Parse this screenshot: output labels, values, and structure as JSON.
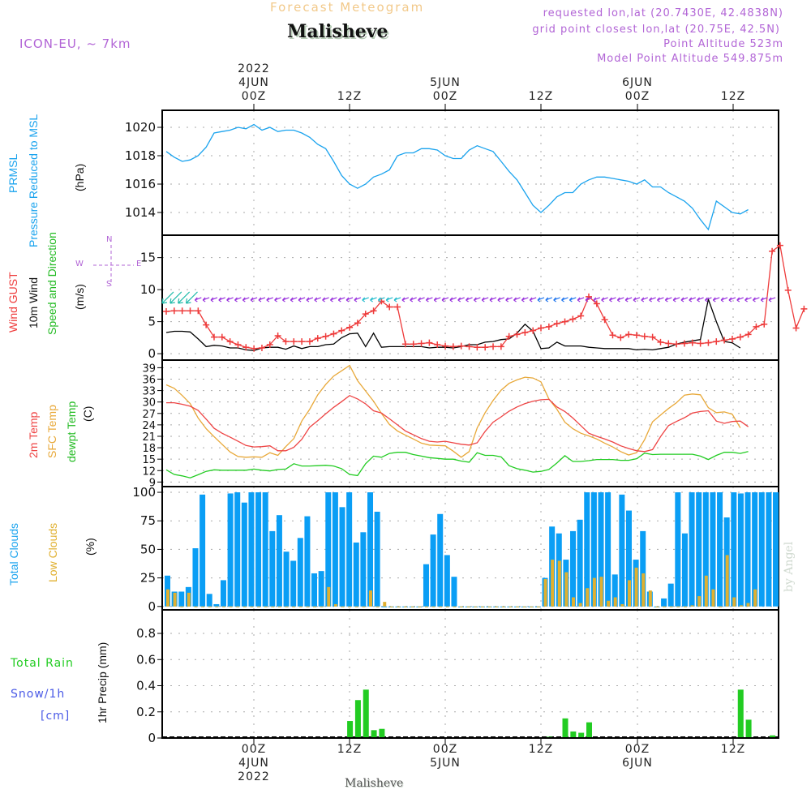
{
  "header": {
    "title": "Forecast Meteogram",
    "location": "Malisheve",
    "model": "ICON-EU, ~ 7km",
    "requested": "requested lon,lat (20.7430E, 42.4838N)",
    "grid_point": "grid point closest lon,lat (20.75E, 42.5N)",
    "point_altitude": "Point Altitude 523m",
    "model_altitude": "Model Point Altitude 549.875m"
  },
  "time_axis": {
    "top_ticks": [
      {
        "l1": "2022",
        "l2": "4JUN",
        "l3": "00Z"
      },
      {
        "l1": "",
        "l2": "",
        "l3": "12Z"
      },
      {
        "l1": "",
        "l2": "5JUN",
        "l3": "00Z"
      },
      {
        "l1": "",
        "l2": "",
        "l3": "12Z"
      },
      {
        "l1": "",
        "l2": "6JUN",
        "l3": "00Z"
      },
      {
        "l1": "",
        "l2": "",
        "l3": "12Z"
      }
    ],
    "bottom_ticks": [
      {
        "l1": "00Z",
        "l2": "4JUN",
        "l3": "2022"
      },
      {
        "l1": "12Z",
        "l2": "",
        "l3": ""
      },
      {
        "l1": "00Z",
        "l2": "5JUN",
        "l3": ""
      },
      {
        "l1": "12Z",
        "l2": "",
        "l3": ""
      },
      {
        "l1": "00Z",
        "l2": "6JUN",
        "l3": ""
      },
      {
        "l1": "12Z",
        "l2": "",
        "l3": ""
      }
    ],
    "start": "2022-06-03 13Z",
    "step_hours": 1
  },
  "labels": {
    "pressure": {
      "l1": "PRMSL",
      "l2": "Pressure Reduced to MSL",
      "unit": "(hPa)"
    },
    "wind": {
      "gust": "Wind GUST",
      "wind10": "10m Wind",
      "dir": "Speed and Direction",
      "unit": "(m/s)",
      "compass": {
        "n": "N",
        "s": "S",
        "e": "E",
        "w": "W"
      }
    },
    "temp": {
      "t2m": "2m Temp",
      "sfc": "SFC Temp",
      "dew": "dewpt Temp",
      "unit": "(C)"
    },
    "clouds": {
      "total": "Total Clouds",
      "low": "Low Clouds",
      "unit": "(%)"
    },
    "precip": {
      "rain": "Total  Rain",
      "snow": "Snow/1h",
      "cm": "[cm]",
      "axis": "1hr Precip (mm)"
    }
  },
  "footer": "Malisheve",
  "watermark": "by Angel",
  "colors": {
    "pressure": "#1aa3ee",
    "gust": "#ee3b3b",
    "wind": "#000000",
    "t2m": "#ee4444",
    "sfc": "#e8a838",
    "dew": "#22cc22",
    "total_clouds": "#0a9ef5",
    "low_clouds": "#e0b030",
    "rain": "#22cc22",
    "annot": "#b265d6"
  },
  "chart_data": [
    {
      "type": "line",
      "title": "PRMSL Pressure Reduced to MSL",
      "ylabel": "(hPa)",
      "ylim": [
        1012.4,
        1021.2
      ],
      "yticks": [
        1014,
        1016,
        1018,
        1020
      ],
      "grid": true,
      "series": [
        {
          "name": "PRMSL",
          "values": [
            1018.3,
            1017.9,
            1017.6,
            1017.7,
            1018.0,
            1018.6,
            1019.6,
            1019.7,
            1019.8,
            1020.0,
            1019.9,
            1020.2,
            1019.8,
            1020.0,
            1019.7,
            1019.8,
            1019.8,
            1019.6,
            1019.3,
            1018.8,
            1018.5,
            1017.6,
            1016.6,
            1016.0,
            1015.7,
            1016.0,
            1016.5,
            1016.7,
            1017.0,
            1018.0,
            1018.2,
            1018.2,
            1018.5,
            1018.5,
            1018.4,
            1018.0,
            1017.8,
            1017.8,
            1018.4,
            1018.7,
            1018.5,
            1018.3,
            1017.6,
            1016.9,
            1016.3,
            1015.4,
            1014.5,
            1014.0,
            1014.5,
            1015.1,
            1015.4,
            1015.4,
            1016.0,
            1016.3,
            1016.5,
            1016.5,
            1016.4,
            1016.3,
            1016.2,
            1016.0,
            1016.3,
            1015.8,
            1015.8,
            1015.4,
            1015.1,
            1014.8,
            1014.3,
            1013.5,
            1012.8,
            1014.8,
            1014.4,
            1014.0,
            1013.9,
            1014.2
          ]
        }
      ]
    },
    {
      "type": "line",
      "title": "Wind GUST / 10m Wind Speed and Direction",
      "ylabel": "(m/s)",
      "ylim": [
        -1,
        18.5
      ],
      "yticks": [
        0,
        5,
        10,
        15
      ],
      "grid": true,
      "series": [
        {
          "name": "Wind GUST",
          "values": [
            6.6,
            6.7,
            6.7,
            6.7,
            6.7,
            4.5,
            2.6,
            2.6,
            1.9,
            1.4,
            1.0,
            0.8,
            0.9,
            1.4,
            2.8,
            1.9,
            1.9,
            1.9,
            1.9,
            2.4,
            2.7,
            3.1,
            3.6,
            4.1,
            4.8,
            6.2,
            6.7,
            8.2,
            7.3,
            7.3,
            1.5,
            1.5,
            1.6,
            1.7,
            1.4,
            1.2,
            1.1,
            1.2,
            1.1,
            1.0,
            1.0,
            1.1,
            1.1,
            2.7,
            3.0,
            3.3,
            3.6,
            4.0,
            4.2,
            4.7,
            5.0,
            5.4,
            5.9,
            8.9,
            7.8,
            5.3,
            2.9,
            2.5,
            3.0,
            2.9,
            2.7,
            2.6,
            1.8,
            1.6,
            1.5,
            1.6,
            1.7,
            1.6,
            1.7,
            1.9,
            2.1,
            2.3,
            2.6,
            3.0,
            4.2,
            4.6,
            16.0,
            16.9,
            9.9,
            4.0,
            7.0
          ]
        },
        {
          "name": "10m Wind",
          "values": [
            3.3,
            3.5,
            3.5,
            3.4,
            2.3,
            1.1,
            1.3,
            1.2,
            0.9,
            0.9,
            0.6,
            0.5,
            0.9,
            1.0,
            1.0,
            0.7,
            1.2,
            0.8,
            1.1,
            1.1,
            1.4,
            1.5,
            2.5,
            3.1,
            3.2,
            1.1,
            3.2,
            1.0,
            1.1,
            1.1,
            1.1,
            1.1,
            1.1,
            0.9,
            1.0,
            1.0,
            0.9,
            1.1,
            1.4,
            1.4,
            1.8,
            1.9,
            2.2,
            2.3,
            3.2,
            4.6,
            3.5,
            0.8,
            0.9,
            1.8,
            1.2,
            1.2,
            1.2,
            1.0,
            0.9,
            0.8,
            0.8,
            0.8,
            0.8,
            0.6,
            0.7,
            0.6,
            0.8,
            1.0,
            1.5,
            1.8,
            2.0,
            2.2,
            8.5,
            5.0,
            1.9,
            1.7,
            0.9
          ]
        }
      ],
      "arrows_level_ms": 8.5
    },
    {
      "type": "line",
      "title": "2m Temp / SFC Temp / dewpt Temp",
      "ylabel": "(C)",
      "ylim": [
        7.8,
        41
      ],
      "yticks": [
        9,
        12,
        15,
        18,
        21,
        24,
        27,
        30,
        33,
        36,
        39
      ],
      "grid": true,
      "series": [
        {
          "name": "2m Temp",
          "values": [
            29.8,
            29.8,
            29.4,
            28.9,
            27.8,
            25.5,
            23.1,
            21.8,
            20.8,
            19.7,
            18.6,
            18.2,
            18.3,
            18.5,
            17.2,
            17.2,
            18.1,
            20.2,
            23.4,
            25.1,
            26.9,
            28.6,
            30.1,
            31.7,
            30.8,
            29.5,
            27.7,
            27.1,
            25.6,
            24.0,
            22.4,
            21.4,
            20.4,
            19.7,
            19.5,
            19.7,
            19.3,
            18.9,
            18.7,
            19.3,
            22.3,
            24.7,
            26.1,
            27.6,
            28.7,
            29.6,
            30.2,
            30.6,
            30.7,
            28.7,
            27.5,
            25.8,
            23.8,
            21.8,
            21.0,
            20.3,
            19.5,
            18.5,
            17.8,
            17.2,
            17.0,
            17.5,
            20.9,
            23.8,
            24.9,
            25.9,
            27.1,
            27.5,
            27.7,
            25.0,
            24.4,
            24.9,
            25.0,
            23.5
          ]
        },
        {
          "name": "SFC Temp",
          "values": [
            34.5,
            33.6,
            31.7,
            29.6,
            25.8,
            23.0,
            20.9,
            18.9,
            16.9,
            15.7,
            15.5,
            15.6,
            15.5,
            16.7,
            16.0,
            18.3,
            20.4,
            25.0,
            28.1,
            31.9,
            34.6,
            36.8,
            38.2,
            39.6,
            35.6,
            32.9,
            30.2,
            27.0,
            24.1,
            22.4,
            21.3,
            20.3,
            19.2,
            18.7,
            18.6,
            18.5,
            17.1,
            15.5,
            17.0,
            23.2,
            27.2,
            30.4,
            33.1,
            34.9,
            35.8,
            36.5,
            36.3,
            35.3,
            30.8,
            28.1,
            24.7,
            23.0,
            21.8,
            21.1,
            20.3,
            19.2,
            18.2,
            17.0,
            16.1,
            16.7,
            20.1,
            24.8,
            26.6,
            28.3,
            29.8,
            31.8,
            32.1,
            31.9,
            28.5,
            27.2,
            27.4,
            26.8,
            23.2
          ]
        },
        {
          "name": "dewpt Temp",
          "values": [
            12.2,
            11.0,
            10.6,
            10.1,
            10.9,
            11.8,
            12.2,
            12.1,
            12.1,
            12.1,
            12.1,
            12.4,
            12.1,
            11.9,
            12.3,
            12.4,
            13.8,
            13.2,
            13.2,
            13.3,
            13.4,
            13.2,
            12.5,
            11.0,
            10.7,
            13.8,
            15.8,
            15.5,
            16.5,
            16.8,
            16.8,
            16.2,
            15.8,
            15.4,
            15.2,
            15.0,
            15.0,
            14.5,
            14.2,
            16.7,
            16.0,
            16.0,
            15.6,
            13.3,
            12.5,
            12.1,
            11.6,
            11.8,
            12.3,
            14.0,
            15.9,
            14.4,
            14.4,
            14.6,
            14.9,
            14.9,
            14.9,
            14.7,
            14.7,
            15.1,
            16.6,
            16.2,
            16.3,
            16.3,
            16.3,
            16.3,
            16.3,
            15.8,
            14.9,
            16.0,
            16.8,
            16.8,
            16.5,
            17.0
          ]
        }
      ]
    },
    {
      "type": "bar",
      "title": "Total Clouds / Low Clouds",
      "ylabel": "(%)",
      "ylim": [
        -3,
        105
      ],
      "yticks": [
        0,
        25,
        50,
        75,
        100
      ],
      "grid": true,
      "series": [
        {
          "name": "Total Clouds",
          "values": [
            27,
            13,
            13,
            17,
            51,
            98,
            11,
            2,
            23,
            99,
            100,
            91,
            100,
            100,
            100,
            66,
            80,
            48,
            40,
            60,
            79,
            29,
            31,
            100,
            100,
            87,
            100,
            56,
            65,
            100,
            83,
            0,
            0,
            0,
            0,
            0,
            0,
            37,
            63,
            81,
            45,
            26,
            0,
            0,
            0,
            0,
            0,
            0,
            0,
            0,
            0,
            0,
            0,
            0,
            25,
            70,
            64,
            41,
            66,
            76,
            100,
            100,
            100,
            100,
            28,
            98,
            84,
            41,
            66,
            13,
            0,
            7,
            20,
            100,
            64,
            100,
            100,
            100,
            100,
            100,
            78,
            100,
            99,
            100,
            100,
            100,
            100,
            100
          ]
        },
        {
          "name": "Low Clouds",
          "values": [
            15,
            12,
            0,
            12,
            0,
            0,
            0,
            0,
            0,
            0,
            0,
            0,
            0,
            0,
            0,
            0,
            0,
            0,
            0,
            0,
            0,
            0,
            0,
            17,
            2,
            0,
            0,
            0,
            0,
            14,
            0,
            4,
            0,
            0,
            0,
            0,
            0,
            0,
            0,
            0,
            0,
            0,
            0,
            0,
            0,
            0,
            0,
            0,
            0,
            0,
            0,
            0,
            0,
            0,
            24,
            41,
            40,
            30,
            8,
            3,
            16,
            25,
            26,
            5,
            8,
            2,
            23,
            34,
            29,
            14,
            0,
            0,
            0,
            0,
            0,
            1,
            9,
            27,
            15,
            0,
            45,
            8,
            1,
            3,
            15
          ]
        }
      ]
    },
    {
      "type": "bar",
      "title": "Total Rain Snow/1h",
      "ylabel": "1hr Precip (mm)",
      "ylim": [
        0,
        0.98
      ],
      "yticks": [
        0,
        0.2,
        0.4,
        0.6,
        0.8
      ],
      "grid": true,
      "series": [
        {
          "name": "Total Rain",
          "values": {
            "23": 0.13,
            "24": 0.29,
            "25": 0.37,
            "26": 0.06,
            "27": 0.07,
            "48": 0.01,
            "50": 0.15,
            "51": 0.05,
            "52": 0.04,
            "53": 0.12,
            "72": 0.37,
            "73": 0.14,
            "76": 0.02
          }
        }
      ]
    }
  ]
}
